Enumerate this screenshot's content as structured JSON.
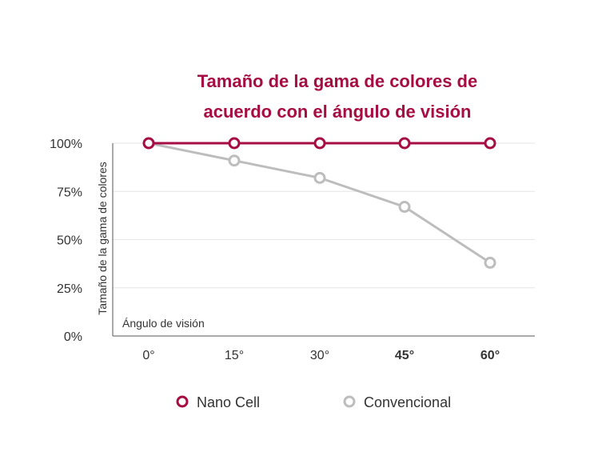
{
  "chart_data": {
    "type": "line",
    "title_line1": "Tamaño de la gama de colores de",
    "title_line2": "acuerdo con el ángulo de visión",
    "ylabel": "Tamaño de la gama de colores",
    "xlabel": "Ángulo de visión",
    "categories": [
      "0°",
      "15°",
      "30°",
      "45°",
      "60°"
    ],
    "highlighted_categories": [
      "45°",
      "60°"
    ],
    "y_ticks": [
      {
        "value": 100,
        "label": "100%"
      },
      {
        "value": 75,
        "label": "75%"
      },
      {
        "value": 50,
        "label": "50%"
      },
      {
        "value": 25,
        "label": "25%"
      },
      {
        "value": 0,
        "label": "0%"
      }
    ],
    "ylim": [
      0,
      100
    ],
    "grid": true,
    "series": [
      {
        "name": "Nano Cell",
        "values": [
          100,
          100,
          100,
          100,
          100
        ],
        "color": "#a50d43"
      },
      {
        "name": "Convencional",
        "values": [
          100,
          91,
          82,
          67,
          38
        ],
        "color": "#bdbdbd"
      }
    ],
    "legend_position": "bottom-center"
  },
  "colors": {
    "accent": "#a50d43",
    "muted": "#bdbdbd",
    "text": "#333333",
    "grid": "#e6e6e6",
    "axis": "#555555"
  }
}
